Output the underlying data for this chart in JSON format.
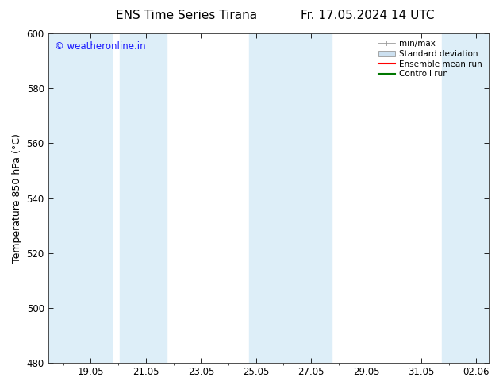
{
  "title_left": "ENS Time Series Tirana",
  "title_right": "Fr. 17.05.2024 14 UTC",
  "ylabel": "Temperature 850 hPa (°C)",
  "ylim": [
    480,
    600
  ],
  "yticks": [
    480,
    500,
    520,
    540,
    560,
    580,
    600
  ],
  "xlim_start": 17.5,
  "xlim_end": 33.5,
  "xtick_labels": [
    "19.05",
    "21.05",
    "23.05",
    "25.05",
    "27.05",
    "29.05",
    "31.05",
    "02.06"
  ],
  "xtick_positions": [
    19.05,
    21.05,
    23.05,
    25.05,
    27.05,
    29.05,
    31.05,
    33.05
  ],
  "watermark": "© weatheronline.in",
  "watermark_color": "#1a1aff",
  "bg_color": "#ffffff",
  "plot_bg_color": "#ffffff",
  "shaded_bands": [
    {
      "x_start": 17.5,
      "x_end": 19.8,
      "color": "#ddeef8"
    },
    {
      "x_start": 20.1,
      "x_end": 21.8,
      "color": "#ddeef8"
    },
    {
      "x_start": 24.8,
      "x_end": 26.0,
      "color": "#ddeef8"
    },
    {
      "x_start": 26.0,
      "x_end": 27.8,
      "color": "#ddeef8"
    },
    {
      "x_start": 31.8,
      "x_end": 33.5,
      "color": "#ddeef8"
    }
  ],
  "minmax_color": "#999999",
  "stddev_color": "#cce0f0",
  "stddev_edge_color": "#999999",
  "ensemble_mean_color": "#ff0000",
  "control_run_color": "#007700",
  "legend_labels": [
    "min/max",
    "Standard deviation",
    "Ensemble mean run",
    "Controll run"
  ],
  "title_fontsize": 11,
  "label_fontsize": 9,
  "tick_fontsize": 8.5
}
